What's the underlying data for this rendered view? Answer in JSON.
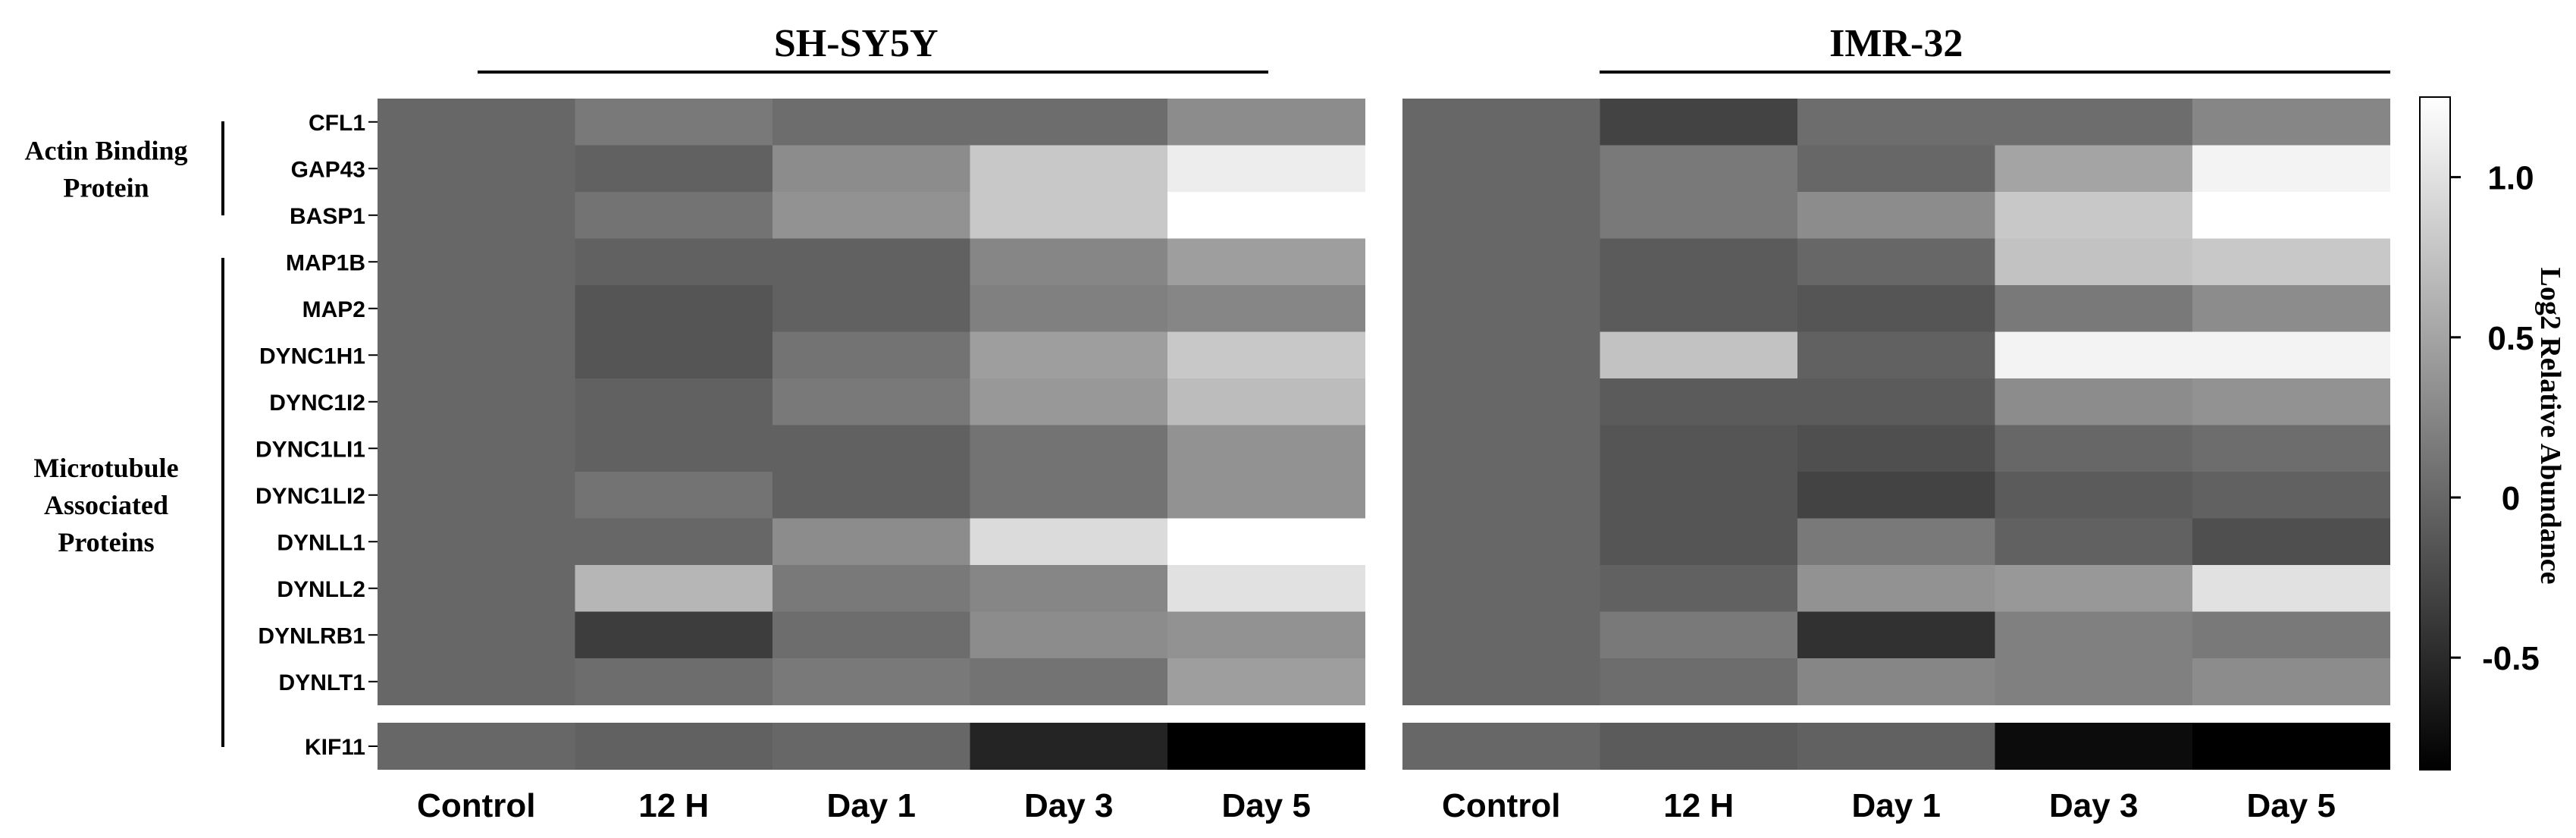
{
  "chart_data": {
    "type": "heatmap",
    "panels": [
      {
        "title": "SH-SY5Y",
        "values": [
          [
            0,
            0.15,
            0.05,
            0.05,
            0.3
          ],
          [
            0,
            -0.05,
            0.3,
            0.8,
            1.1
          ],
          [
            0,
            0.1,
            0.35,
            0.8,
            1.25
          ],
          [
            0,
            -0.05,
            -0.05,
            0.25,
            0.45
          ],
          [
            0,
            -0.15,
            -0.05,
            0.2,
            0.25
          ],
          [
            0,
            -0.15,
            0.1,
            0.45,
            0.8
          ],
          [
            0,
            -0.05,
            0.15,
            0.4,
            0.7
          ],
          [
            0,
            -0.05,
            -0.05,
            0.1,
            0.35
          ],
          [
            0,
            0.1,
            -0.05,
            0.1,
            0.35
          ],
          [
            0,
            0,
            0.3,
            0.95,
            1.25
          ],
          [
            0,
            0.65,
            0.15,
            0.25,
            1.0
          ],
          [
            0,
            -0.35,
            0.05,
            0.3,
            0.35
          ],
          [
            0,
            0.05,
            0.15,
            0.1,
            0.45
          ],
          [
            0,
            -0.05,
            0,
            -0.55,
            -0.85
          ]
        ]
      },
      {
        "title": "IMR-32",
        "values": [
          [
            0,
            -0.3,
            0.05,
            0.05,
            0.25
          ],
          [
            0,
            0.15,
            0,
            0.5,
            1.15
          ],
          [
            0,
            0.15,
            0.3,
            0.8,
            1.25
          ],
          [
            0,
            -0.1,
            0,
            0.75,
            0.8
          ],
          [
            0,
            -0.1,
            -0.15,
            0.15,
            0.3
          ],
          [
            0,
            0.75,
            -0.05,
            1.15,
            1.15
          ],
          [
            0,
            -0.1,
            -0.1,
            0.3,
            0.35
          ],
          [
            0,
            -0.15,
            -0.2,
            0,
            0.05
          ],
          [
            0,
            -0.15,
            -0.3,
            -0.1,
            -0.05
          ],
          [
            0,
            -0.15,
            0.15,
            -0.05,
            -0.2
          ],
          [
            0,
            -0.05,
            0.35,
            0.4,
            1.0
          ],
          [
            0,
            0.15,
            -0.45,
            0.2,
            0.15
          ],
          [
            0,
            0.05,
            0.25,
            0.2,
            0.3
          ],
          [
            0,
            -0.1,
            -0.05,
            -0.75,
            -0.85
          ]
        ]
      }
    ],
    "columns": [
      "Control",
      "12 H",
      "Day 1",
      "Day 3",
      "Day 5"
    ],
    "rows": [
      "CFL1",
      "GAP43",
      "BASP1",
      "MAP1B",
      "MAP2",
      "DYNC1H1",
      "DYNC1I2",
      "DYNC1LI1",
      "DYNC1LI2",
      "DYNLL1",
      "DYNLL2",
      "DYNLRB1",
      "DYNLT1",
      "KIF11"
    ],
    "groups": [
      {
        "label_lines": [
          "Actin Binding",
          "Protein"
        ]
      },
      {
        "label_lines": [
          "Microtubule",
          "Associated",
          "Proteins"
        ]
      }
    ],
    "colorbar": {
      "label": "Log2 Relative Abundance",
      "min": -0.85,
      "max": 1.25,
      "ticks": [
        1.0,
        0.5,
        0,
        -0.5
      ],
      "tick_labels": [
        "1.0",
        "0.5",
        "0",
        "-0.5"
      ],
      "color_low": "#000000",
      "color_high": "#ffffff"
    }
  }
}
